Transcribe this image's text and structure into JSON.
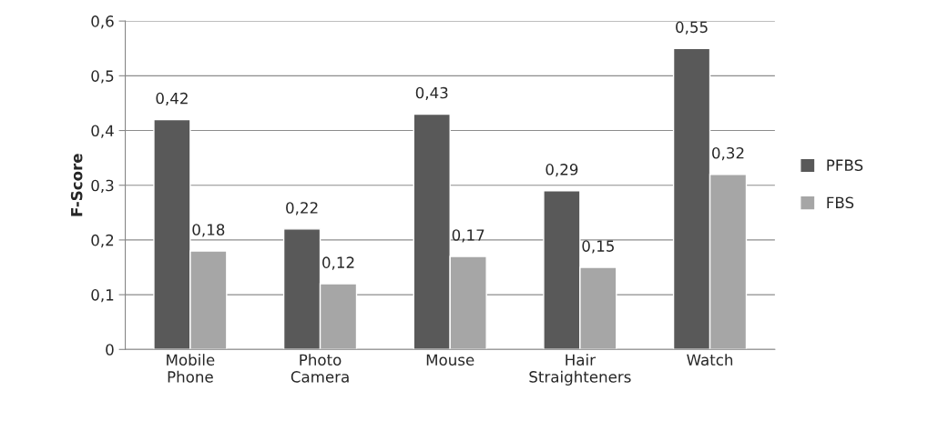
{
  "chart_data": {
    "type": "bar",
    "ylabel": "F-Score",
    "categories": [
      "Mobile\nPhone",
      "Photo\nCamera",
      "Mouse",
      "Hair\nStraighteners",
      "Watch"
    ],
    "series": [
      {
        "name": "PFBS",
        "color": "#595959",
        "values": [
          0.42,
          0.22,
          0.43,
          0.29,
          0.55
        ],
        "value_labels": [
          "0,42",
          "0,22",
          "0,43",
          "0,29",
          "0,55"
        ]
      },
      {
        "name": "FBS",
        "color": "#a6a6a6",
        "values": [
          0.18,
          0.12,
          0.17,
          0.15,
          0.32
        ],
        "value_labels": [
          "0,18",
          "0,12",
          "0,17",
          "0,15",
          "0,32"
        ]
      }
    ],
    "ylim": [
      0,
      0.6
    ],
    "yticks": [
      0,
      {
        "value": 0.1,
        "label": "0,1"
      },
      {
        "value": 0.2,
        "label": "0,2"
      },
      {
        "value": 0.3,
        "label": "0,3"
      },
      {
        "value": 0.4,
        "label": "0,4"
      },
      {
        "value": 0.5,
        "label": "0,5"
      },
      {
        "value": 0.6,
        "label": "0,6"
      }
    ],
    "grid": "y",
    "legend": "right"
  }
}
